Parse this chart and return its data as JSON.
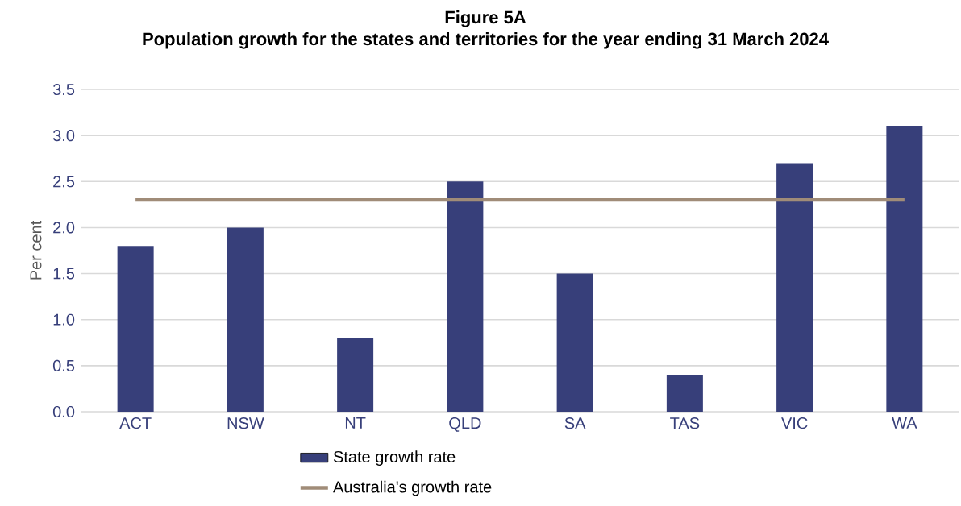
{
  "chart_data": {
    "type": "bar",
    "title": "Figure 5A",
    "subtitle": "Population growth for the states and territories for the year ending 31 March 2024",
    "ylabel": "Per cent",
    "categories": [
      "ACT",
      "NSW",
      "NT",
      "QLD",
      "SA",
      "TAS",
      "VIC",
      "WA"
    ],
    "series": [
      {
        "name": "State growth rate",
        "color": "#373f7a",
        "values": [
          1.8,
          2.0,
          0.8,
          2.5,
          1.5,
          0.4,
          2.7,
          3.1
        ]
      },
      {
        "name": "Australia's growth rate",
        "type": "line",
        "color": "#a08c78",
        "values": [
          2.3,
          2.3,
          2.3,
          2.3,
          2.3,
          2.3,
          2.3,
          2.3
        ]
      }
    ],
    "ylim": [
      0,
      3.5
    ],
    "yticks": [
      {
        "value": 0,
        "label": "0.0"
      },
      {
        "value": 0.5,
        "label": "0.5"
      },
      {
        "value": 1,
        "label": "1.0"
      },
      {
        "value": 1.5,
        "label": "1.5"
      },
      {
        "value": 2,
        "label": "2.0"
      },
      {
        "value": 2.5,
        "label": "2.5"
      },
      {
        "value": 3,
        "label": "3.0"
      },
      {
        "value": 3.5,
        "label": "3.5"
      }
    ],
    "grid": "y",
    "legend": "bottom"
  }
}
